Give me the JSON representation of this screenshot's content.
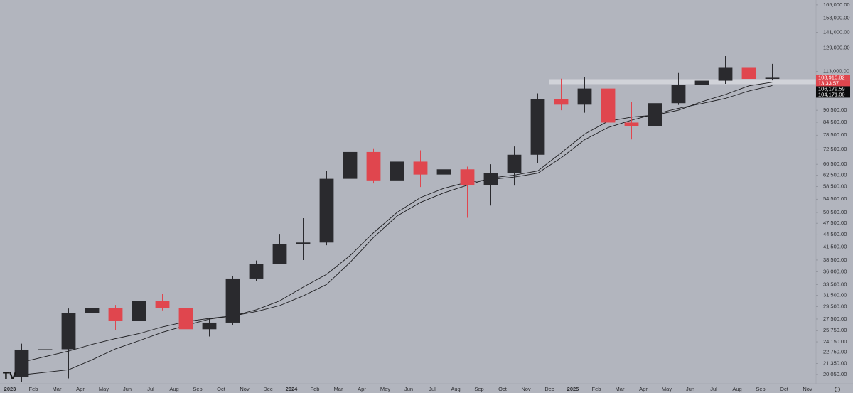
{
  "chart_data": {
    "type": "candlestick",
    "log_scale": true,
    "grid": false,
    "x": [
      "2023-01",
      "2023-02",
      "2023-03",
      "2023-04",
      "2023-05",
      "2023-06",
      "2023-07",
      "2023-08",
      "2023-09",
      "2023-10",
      "2023-11",
      "2023-12",
      "2024-01",
      "2024-02",
      "2024-03",
      "2024-04",
      "2024-05",
      "2024-06",
      "2024-07",
      "2024-08",
      "2024-09",
      "2024-10",
      "2024-11",
      "2024-12",
      "2025-01",
      "2025-02",
      "2025-03",
      "2025-04",
      "2025-05",
      "2025-06",
      "2025-07",
      "2025-08",
      "2025-09",
      "2025-10",
      "2025-11"
    ],
    "x_tick_labels": [
      "2023",
      "Feb",
      "Mar",
      "Apr",
      "May",
      "Jun",
      "Jul",
      "Aug",
      "Sep",
      "Oct",
      "Nov",
      "Dec",
      "2024",
      "Feb",
      "Mar",
      "Apr",
      "May",
      "Jun",
      "Jul",
      "Aug",
      "Sep",
      "Oct",
      "Nov",
      "Dec",
      "2025",
      "Feb",
      "Mar",
      "Apr",
      "May",
      "Jun",
      "Jul",
      "Aug",
      "Sep",
      "Oct",
      "Nov"
    ],
    "up_color": "#2a2a2e",
    "down_color": "#e0464e",
    "open": [
      19800,
      23100,
      23150,
      28450,
      29250,
      27200,
      30450,
      29250,
      25950,
      26950,
      34650,
      37700,
      42250,
      42550,
      61200,
      71300,
      60650,
      67500,
      62700,
      64600,
      58950,
      63300,
      70200,
      96400,
      93400,
      102400,
      84350,
      82500,
      94200,
      104600,
      107100,
      115700,
      108200,
      null,
      null
    ],
    "high": [
      23900,
      25200,
      29200,
      31000,
      29800,
      31400,
      31800,
      30200,
      27500,
      35200,
      38400,
      44700,
      48900,
      64000,
      73800,
      72800,
      71900,
      72000,
      70000,
      65600,
      66500,
      73600,
      99600,
      108300,
      109300,
      102600,
      95000,
      95700,
      111900,
      110600,
      123200,
      124500,
      117900,
      null,
      null
    ],
    "low": [
      19200,
      21400,
      19600,
      26900,
      25850,
      24800,
      28900,
      25200,
      24900,
      26550,
      34100,
      37600,
      38500,
      41900,
      59000,
      59600,
      56500,
      58400,
      53500,
      49000,
      52550,
      58900,
      66800,
      90500,
      89200,
      78200,
      76600,
      74400,
      93300,
      98200,
      105200,
      108000,
      107300,
      null,
      null
    ],
    "close": [
      23100,
      23150,
      28450,
      29250,
      27200,
      30450,
      29250,
      25950,
      26950,
      34650,
      37700,
      42250,
      42550,
      61200,
      71300,
      60650,
      67500,
      62700,
      64600,
      58950,
      63300,
      70200,
      96400,
      93400,
      102400,
      84350,
      82500,
      94200,
      104600,
      107100,
      115700,
      108200,
      108910.82,
      null,
      null
    ],
    "last_label": "108,910.82",
    "countdown": "13:33:57",
    "series": [
      {
        "color": "#1c1c1f",
        "last_label": "106,179.59",
        "values": [
          21500,
          22200,
          22900,
          23800,
          24600,
          25300,
          26300,
          27100,
          27600,
          28000,
          28700,
          29700,
          31400,
          33500,
          38000,
          43800,
          49500,
          53500,
          56500,
          59000,
          61500,
          62500,
          64000,
          71000,
          79000,
          85000,
          87000,
          88000,
          90500,
          95000,
          99000,
          104000,
          106179.59,
          null,
          null
        ]
      },
      {
        "color": "#1c1c1f",
        "last_label": "104,171.09",
        "values": [
          20000,
          20300,
          20600,
          21800,
          23200,
          24300,
          25500,
          26500,
          27500,
          28000,
          29000,
          30500,
          33000,
          35500,
          39500,
          45000,
          50500,
          55000,
          58000,
          60000,
          61000,
          61800,
          63200,
          69000,
          76500,
          82000,
          85500,
          88500,
          91500,
          94000,
          96800,
          101000,
          104171.09,
          null,
          null
        ]
      }
    ],
    "zone": {
      "from": "2024-12",
      "low": 105000,
      "high": 108000,
      "color": "#d6d8de"
    },
    "ylim": [
      19170,
      169700
    ],
    "yticks": [
      {
        "value": 165000,
        "label": "165,000.00"
      },
      {
        "value": 153000,
        "label": "153,000.00"
      },
      {
        "value": 141000,
        "label": "141,000.00"
      },
      {
        "value": 129000,
        "label": "129,000.00"
      },
      {
        "value": 113000,
        "label": "113,000.00"
      },
      {
        "value": 90500,
        "label": "90,500.00"
      },
      {
        "value": 84500,
        "label": "84,500.00"
      },
      {
        "value": 78500,
        "label": "78,500.00"
      },
      {
        "value": 72500,
        "label": "72,500.00"
      },
      {
        "value": 66500,
        "label": "66,500.00"
      },
      {
        "value": 62500,
        "label": "62,500.00"
      },
      {
        "value": 58500,
        "label": "58,500.00"
      },
      {
        "value": 54500,
        "label": "54,500.00"
      },
      {
        "value": 50500,
        "label": "50,500.00"
      },
      {
        "value": 47500,
        "label": "47,500.00"
      },
      {
        "value": 44500,
        "label": "44,500.00"
      },
      {
        "value": 41500,
        "label": "41,500.00"
      },
      {
        "value": 38500,
        "label": "38,500.00"
      },
      {
        "value": 36000,
        "label": "36,000.00"
      },
      {
        "value": 33500,
        "label": "33,500.00"
      },
      {
        "value": 31500,
        "label": "31,500.00"
      },
      {
        "value": 29500,
        "label": "29,500.00"
      },
      {
        "value": 27500,
        "label": "27,500.00"
      },
      {
        "value": 25750,
        "label": "25,750.00"
      },
      {
        "value": 24150,
        "label": "24,150.00"
      },
      {
        "value": 22750,
        "label": "22,750.00"
      },
      {
        "value": 21350,
        "label": "21,350.00"
      },
      {
        "value": 20050,
        "label": "20,050.00"
      }
    ]
  }
}
